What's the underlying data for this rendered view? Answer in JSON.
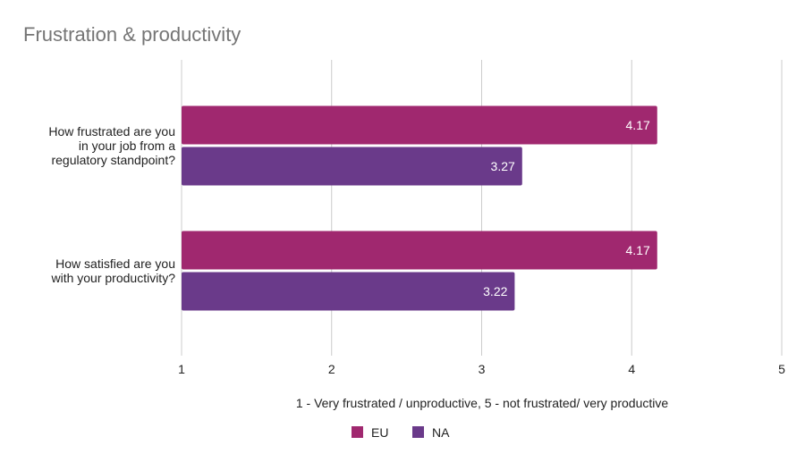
{
  "chart_data": {
    "type": "bar",
    "orientation": "horizontal",
    "title": "Frustration & productivity",
    "xlabel": "1 - Very frustrated / unproductive, 5 - not frustrated/ very productive",
    "ylabel": "",
    "xlim": [
      1,
      5
    ],
    "ticks": [
      "1",
      "2",
      "3",
      "4",
      "5"
    ],
    "grid": true,
    "legend_position": "bottom",
    "categories": [
      [
        "How frustrated are you",
        "in your job from a",
        "regulatory standpoint?"
      ],
      [
        "How satisfied are you",
        "with your productivity?"
      ]
    ],
    "series": [
      {
        "name": "EU",
        "color": "#A0286F",
        "values": [
          4.17,
          4.17
        ],
        "labels": [
          "4.17",
          "4.17"
        ]
      },
      {
        "name": "NA",
        "color": "#6A3A8A",
        "values": [
          3.27,
          3.22
        ],
        "labels": [
          "3.27",
          "3.22"
        ]
      }
    ]
  }
}
